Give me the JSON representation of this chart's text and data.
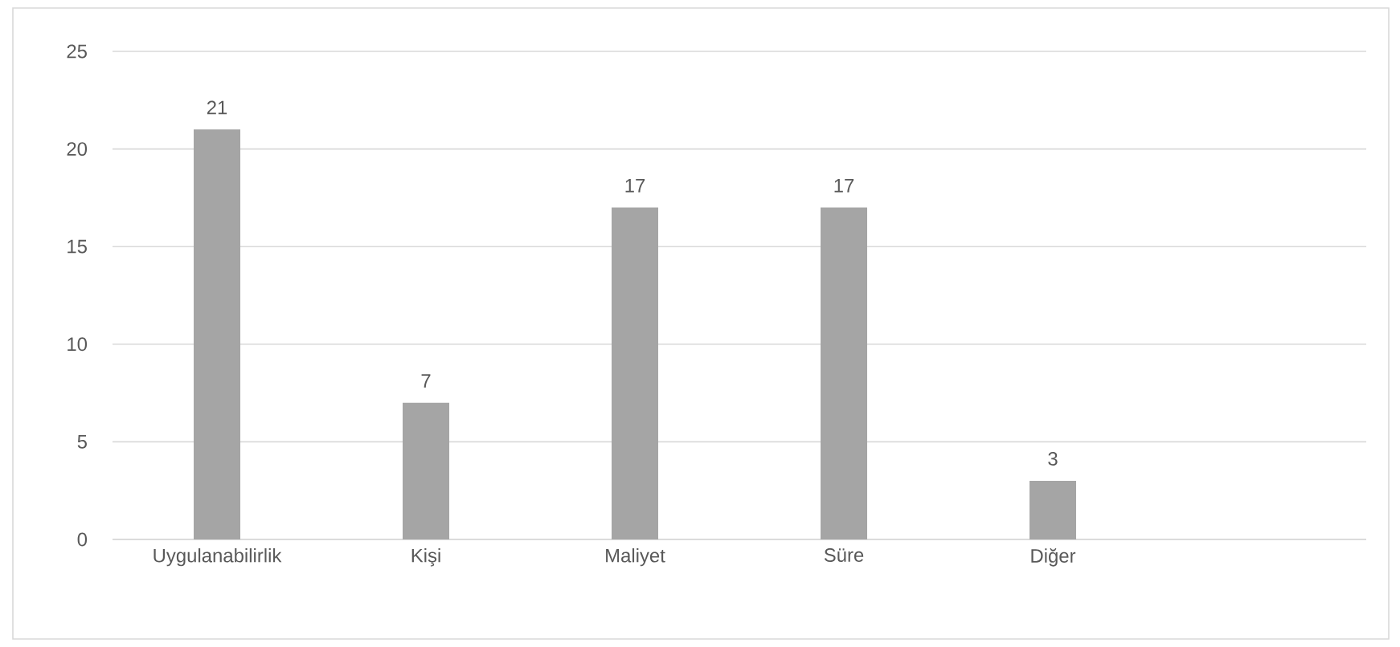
{
  "chart_data": {
    "type": "bar",
    "categories": [
      "Uygulanabilirlik",
      "Kişi",
      "Maliyet",
      "Süre",
      "Diğer",
      null
    ],
    "values": [
      21,
      7,
      17,
      17,
      3,
      null
    ],
    "color": "#a5a5a5",
    "ylim": [
      0,
      25
    ],
    "yticks": [
      0,
      5,
      10,
      15,
      20,
      25
    ],
    "grid": "y",
    "data_labels": true
  }
}
